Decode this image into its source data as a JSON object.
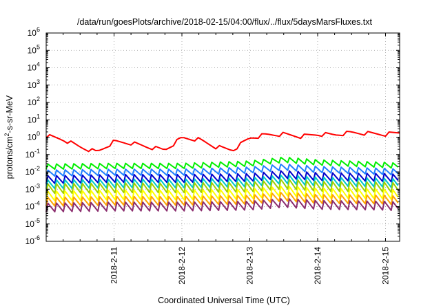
{
  "chart_data": {
    "type": "line",
    "title": "/data/run/goesPlots/archive/2018-02-15/04:00/flux/../flux/5daysMarsFluxes.txt",
    "xlabel": "Coordinated Universal Time (UTC)",
    "ylabel": "protons/cm2-s-sr-MeV",
    "yscale": "log",
    "ylim_exponent": [
      -6,
      6
    ],
    "y_tick_labels": [
      {
        "base": "10",
        "exp": "6"
      },
      {
        "base": "10",
        "exp": "5"
      },
      {
        "base": "10",
        "exp": "4"
      },
      {
        "base": "10",
        "exp": "3"
      },
      {
        "base": "10",
        "exp": "2"
      },
      {
        "base": "10",
        "exp": "1"
      },
      {
        "base": "10",
        "exp": "0"
      },
      {
        "base": "10",
        "exp": "-1"
      },
      {
        "base": "10",
        "exp": "-2"
      },
      {
        "base": "10",
        "exp": "-3"
      },
      {
        "base": "10",
        "exp": "-4"
      },
      {
        "base": "10",
        "exp": "-5"
      },
      {
        "base": "10",
        "exp": "-6"
      }
    ],
    "xlim": [
      "2018-02-10T00:00",
      "2018-02-15T05:00"
    ],
    "x_tick_labels": [
      {
        "date": "2018-02-11",
        "label": "2018-2-11"
      },
      {
        "date": "2018-02-12",
        "label": "2018-2-12"
      },
      {
        "date": "2018-02-13",
        "label": "2018-2-13"
      },
      {
        "date": "2018-02-14",
        "label": "2018-2-14"
      },
      {
        "date": "2018-02-15",
        "label": "2018-2-15"
      }
    ],
    "grid": true,
    "series": [
      {
        "color": "#ff0000",
        "pattern": "drops",
        "amp": 0.5,
        "x": [
          "2018-02-10T00:00",
          "2018-02-10T06:00",
          "2018-02-10T12:00",
          "2018-02-10T18:00",
          "2018-02-11T00:00",
          "2018-02-11T06:00",
          "2018-02-11T12:00",
          "2018-02-11T18:00",
          "2018-02-12T00:00",
          "2018-02-12T06:00",
          "2018-02-12T12:00",
          "2018-02-12T18:00",
          "2018-02-13T00:00",
          "2018-02-13T06:00",
          "2018-02-13T12:00",
          "2018-02-13T18:00",
          "2018-02-14T00:00",
          "2018-02-14T06:00",
          "2018-02-14T12:00",
          "2018-02-14T18:00",
          "2018-02-15T00:00",
          "2018-02-15T05:00"
        ],
        "y": [
          1.3,
          0.8,
          0.3,
          0.15,
          0.6,
          0.5,
          0.3,
          0.2,
          1.0,
          0.8,
          0.3,
          0.2,
          1.0,
          1.5,
          1.6,
          1.2,
          1.6,
          1.5,
          2.0,
          1.8,
          1.6,
          2.0
        ]
      },
      {
        "color": "#00ee00",
        "pattern": "spikes",
        "amp": 0.6,
        "x": [
          "2018-02-10T00:00",
          "2018-02-11T00:00",
          "2018-02-12T00:00",
          "2018-02-13T00:00",
          "2018-02-13T12:00",
          "2018-02-14T00:00",
          "2018-02-15T00:00",
          "2018-02-15T05:00"
        ],
        "y": [
          0.02,
          0.022,
          0.022,
          0.03,
          0.05,
          0.035,
          0.025,
          0.022
        ]
      },
      {
        "color": "#1f7fff",
        "pattern": "spikes",
        "amp": 0.7,
        "x": [
          "2018-02-10T00:00",
          "2018-02-11T00:00",
          "2018-02-12T00:00",
          "2018-02-13T00:00",
          "2018-02-13T12:00",
          "2018-02-14T00:00",
          "2018-02-15T00:00",
          "2018-02-15T05:00"
        ],
        "y": [
          0.008,
          0.009,
          0.009,
          0.012,
          0.018,
          0.013,
          0.01,
          0.009
        ]
      },
      {
        "color": "#0000cc",
        "pattern": "spikes",
        "amp": 0.9,
        "x": [
          "2018-02-10T00:00",
          "2018-02-11T00:00",
          "2018-02-12T00:00",
          "2018-02-13T00:00",
          "2018-02-13T12:00",
          "2018-02-14T00:00",
          "2018-02-15T00:00",
          "2018-02-15T05:00"
        ],
        "y": [
          0.003,
          0.0035,
          0.0035,
          0.004,
          0.006,
          0.0045,
          0.004,
          0.0035
        ]
      },
      {
        "color": "#00c8c8",
        "pattern": "spikes",
        "amp": 1.0,
        "x": [
          "2018-02-10T00:00",
          "2018-02-11T00:00",
          "2018-02-12T00:00",
          "2018-02-13T00:00",
          "2018-02-13T12:00",
          "2018-02-14T00:00",
          "2018-02-15T00:00",
          "2018-02-15T05:00"
        ],
        "y": [
          0.0015,
          0.0017,
          0.0017,
          0.002,
          0.003,
          0.0022,
          0.0019,
          0.0017
        ]
      },
      {
        "color": "#a0d000",
        "pattern": "spikes",
        "amp": 1.1,
        "x": [
          "2018-02-10T00:00",
          "2018-02-11T00:00",
          "2018-02-12T00:00",
          "2018-02-13T00:00",
          "2018-02-13T12:00",
          "2018-02-14T00:00",
          "2018-02-15T00:00",
          "2018-02-15T05:00"
        ],
        "y": [
          0.0008,
          0.0009,
          0.0009,
          0.001,
          0.0015,
          0.0011,
          0.001,
          0.0009
        ]
      },
      {
        "color": "#ffff00",
        "pattern": "spikes",
        "amp": 1.1,
        "x": [
          "2018-02-10T00:00",
          "2018-02-11T00:00",
          "2018-02-12T00:00",
          "2018-02-13T00:00",
          "2018-02-13T12:00",
          "2018-02-14T00:00",
          "2018-02-15T00:00",
          "2018-02-15T05:00"
        ],
        "y": [
          0.0003,
          0.00035,
          0.00035,
          0.0004,
          0.0006,
          0.00045,
          0.0004,
          0.00035
        ]
      },
      {
        "color": "#ffa500",
        "pattern": "spikes",
        "amp": 1.0,
        "x": [
          "2018-02-10T00:00",
          "2018-02-11T00:00",
          "2018-02-12T00:00",
          "2018-02-13T00:00",
          "2018-02-13T12:00",
          "2018-02-14T00:00",
          "2018-02-15T00:00",
          "2018-02-15T05:00"
        ],
        "y": [
          0.00015,
          0.00017,
          0.00017,
          0.0002,
          0.0003,
          0.00022,
          0.0002,
          0.00017
        ]
      },
      {
        "color": "#8b2d6e",
        "pattern": "spikes",
        "amp": 1.0,
        "x": [
          "2018-02-10T00:00",
          "2018-02-11T00:00",
          "2018-02-12T00:00",
          "2018-02-13T00:00",
          "2018-02-13T12:00",
          "2018-02-14T00:00",
          "2018-02-15T00:00",
          "2018-02-15T05:00"
        ],
        "y": [
          7e-05,
          8e-05,
          8e-05,
          9e-05,
          0.00013,
          0.0001,
          9e-05,
          8e-05
        ]
      }
    ]
  }
}
